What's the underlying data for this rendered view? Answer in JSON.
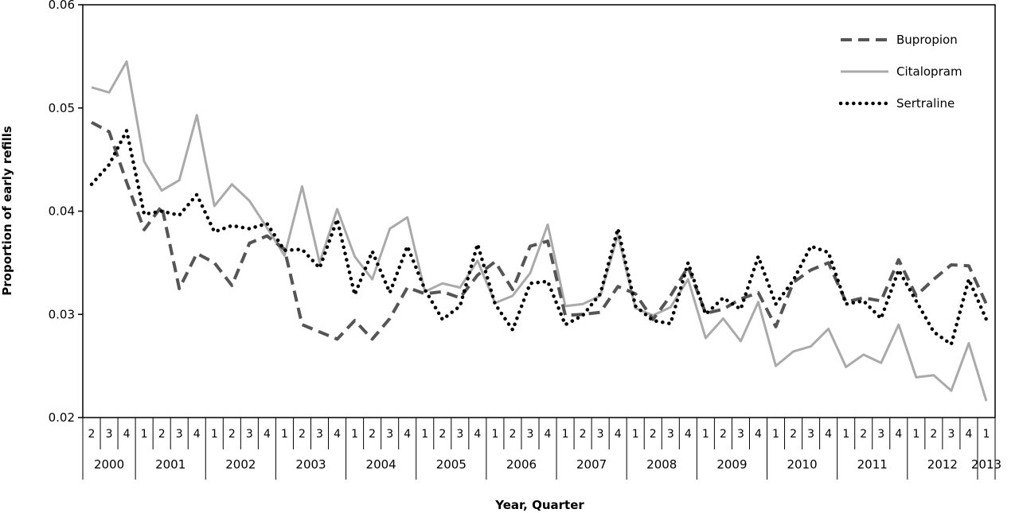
{
  "chart_data": {
    "type": "line",
    "title": "",
    "xlabel": "Year, Quarter",
    "ylabel": "Proportion of early refills",
    "ylim": [
      0.02,
      0.06
    ],
    "yticks": [
      "0.02",
      "0.03",
      "0.04",
      "0.05",
      "0.06"
    ],
    "legend_position": "top-right",
    "grid": false,
    "quarters": [
      "2",
      "3",
      "4",
      "1",
      "2",
      "3",
      "4",
      "1",
      "2",
      "3",
      "4",
      "1",
      "2",
      "3",
      "4",
      "1",
      "2",
      "3",
      "4",
      "1",
      "2",
      "3",
      "4",
      "1",
      "2",
      "3",
      "4",
      "1",
      "2",
      "3",
      "4",
      "1",
      "2",
      "3",
      "4",
      "1",
      "2",
      "3",
      "4",
      "1",
      "2",
      "3",
      "4",
      "1",
      "2",
      "3",
      "4",
      "1",
      "2",
      "3",
      "4",
      "1"
    ],
    "years": [
      {
        "label": "2000",
        "quarters": 3
      },
      {
        "label": "2001",
        "quarters": 4
      },
      {
        "label": "2002",
        "quarters": 4
      },
      {
        "label": "2003",
        "quarters": 4
      },
      {
        "label": "2004",
        "quarters": 4
      },
      {
        "label": "2005",
        "quarters": 4
      },
      {
        "label": "2006",
        "quarters": 4
      },
      {
        "label": "2007",
        "quarters": 4
      },
      {
        "label": "2008",
        "quarters": 4
      },
      {
        "label": "2009",
        "quarters": 4
      },
      {
        "label": "2010",
        "quarters": 4
      },
      {
        "label": "2011",
        "quarters": 4
      },
      {
        "label": "2012",
        "quarters": 4
      },
      {
        "label": "2013",
        "quarters": 1
      }
    ],
    "series": [
      {
        "name": "Bupropion",
        "style": "dashed",
        "color": "#555555",
        "values": [
          0.0486,
          0.0477,
          0.0428,
          0.0382,
          0.0405,
          0.0325,
          0.0359,
          0.035,
          0.0328,
          0.0369,
          0.0376,
          0.0363,
          0.029,
          0.0283,
          0.0276,
          0.0294,
          0.0276,
          0.0296,
          0.0326,
          0.032,
          0.0322,
          0.0316,
          0.0338,
          0.0351,
          0.0324,
          0.0366,
          0.0371,
          0.0299,
          0.03,
          0.0302,
          0.0327,
          0.032,
          0.0295,
          0.0318,
          0.0346,
          0.0301,
          0.0305,
          0.0315,
          0.0321,
          0.0288,
          0.0331,
          0.0343,
          0.035,
          0.0312,
          0.0316,
          0.0313,
          0.0353,
          0.0318,
          0.0334,
          0.0348,
          0.0347,
          0.031
        ]
      },
      {
        "name": "Citalopram",
        "style": "solid",
        "color": "#aaaaaa",
        "values": [
          0.052,
          0.0515,
          0.0545,
          0.0448,
          0.042,
          0.043,
          0.0493,
          0.0405,
          0.0426,
          0.041,
          0.0384,
          0.0357,
          0.0424,
          0.035,
          0.0402,
          0.0356,
          0.0334,
          0.0383,
          0.0394,
          0.0322,
          0.033,
          0.0326,
          0.0352,
          0.0311,
          0.0318,
          0.034,
          0.0387,
          0.0308,
          0.031,
          0.0318,
          0.0377,
          0.0306,
          0.0299,
          0.0307,
          0.0334,
          0.0277,
          0.0296,
          0.0274,
          0.0312,
          0.025,
          0.0264,
          0.0269,
          0.0286,
          0.0249,
          0.0261,
          0.0253,
          0.029,
          0.0239,
          0.0241,
          0.0226,
          0.0272,
          0.0216
        ]
      },
      {
        "name": "Sertraline",
        "style": "dotted",
        "color": "#000000",
        "values": [
          0.0426,
          0.0445,
          0.0478,
          0.0397,
          0.04,
          0.0396,
          0.0416,
          0.038,
          0.0386,
          0.0383,
          0.0388,
          0.0362,
          0.0363,
          0.0345,
          0.0392,
          0.0319,
          0.0361,
          0.0321,
          0.0366,
          0.0324,
          0.0295,
          0.0308,
          0.0368,
          0.031,
          0.0285,
          0.033,
          0.0332,
          0.029,
          0.0299,
          0.032,
          0.0383,
          0.0308,
          0.0294,
          0.0291,
          0.035,
          0.03,
          0.0316,
          0.0305,
          0.0356,
          0.031,
          0.0333,
          0.0366,
          0.036,
          0.031,
          0.0313,
          0.0296,
          0.0343,
          0.0313,
          0.0283,
          0.0271,
          0.0334,
          0.0295
        ]
      }
    ]
  }
}
